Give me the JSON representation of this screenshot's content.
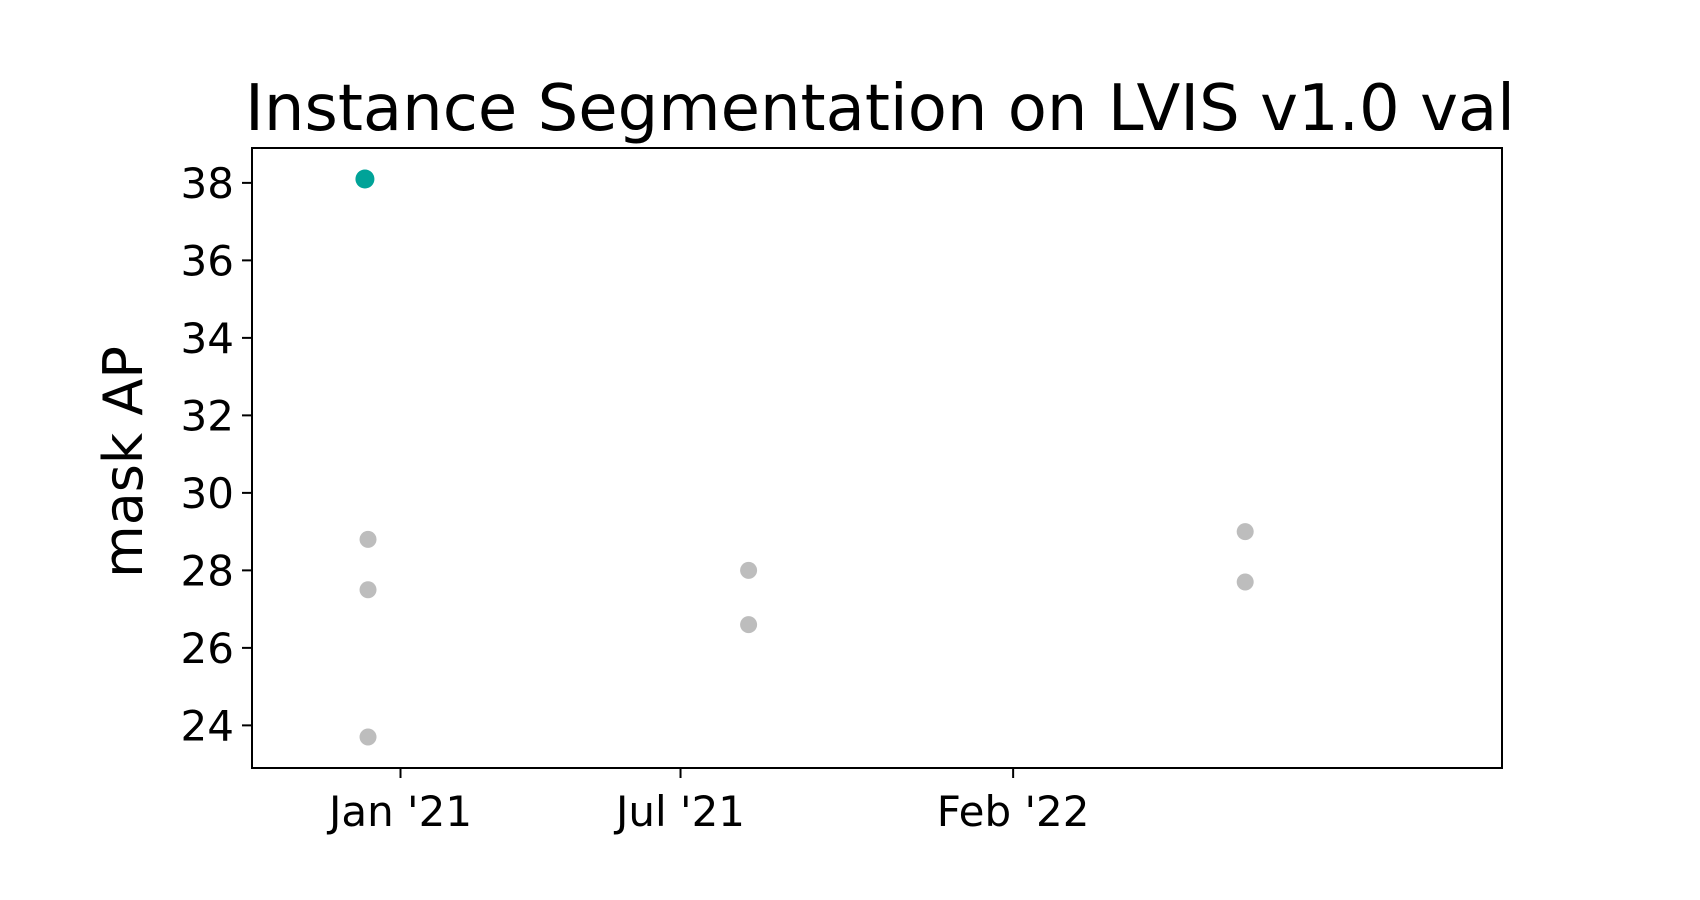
{
  "chart_data": {
    "type": "scatter",
    "title": "Instance Segmentation on LVIS v1.0 val",
    "xlabel": "",
    "ylabel": "mask AP",
    "x_ticks": [
      {
        "label": "Jan '21",
        "x": "2021-01-01"
      },
      {
        "label": "Jul '21",
        "x": "2021-07-01"
      },
      {
        "label": "Feb '22",
        "x": "2022-02-01"
      }
    ],
    "y_ticks": [
      24,
      26,
      28,
      30,
      32,
      34,
      36,
      38
    ],
    "xlim": [
      "2020-09-27",
      "2022-12-14"
    ],
    "ylim": [
      22.9,
      38.9
    ],
    "grid": false,
    "points": [
      {
        "x": "2020-12-09",
        "y": 38.1,
        "highlight": true
      },
      {
        "x": "2020-12-11",
        "y": 28.8,
        "highlight": false
      },
      {
        "x": "2020-12-11",
        "y": 27.5,
        "highlight": false
      },
      {
        "x": "2020-12-11",
        "y": 23.7,
        "highlight": false
      },
      {
        "x": "2021-08-14",
        "y": 28.0,
        "highlight": false
      },
      {
        "x": "2021-08-14",
        "y": 26.6,
        "highlight": false
      },
      {
        "x": "2022-07-01",
        "y": 29.0,
        "highlight": false
      },
      {
        "x": "2022-07-01",
        "y": 27.7,
        "highlight": false
      }
    ],
    "colors": {
      "highlight": "#00A398",
      "point": "#BDBDBD",
      "axis": "#000000"
    }
  }
}
